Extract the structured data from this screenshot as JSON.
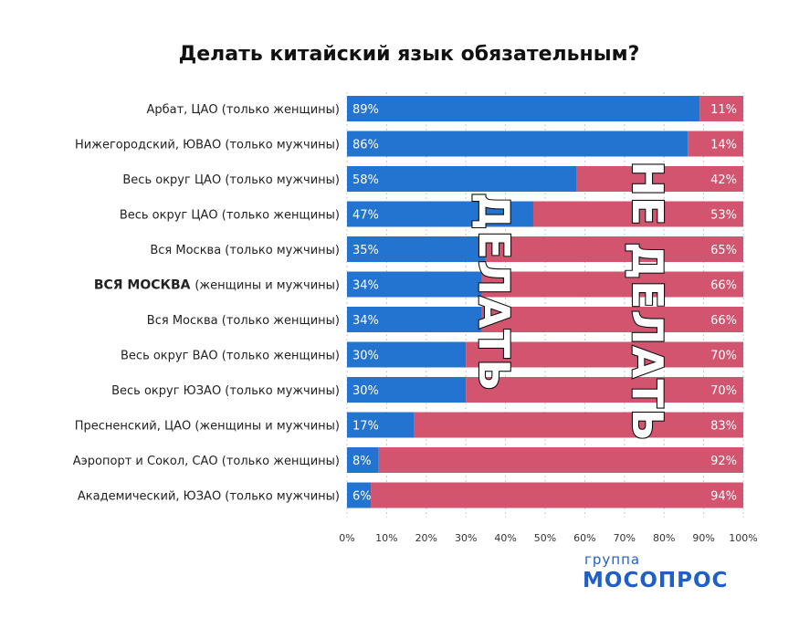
{
  "chart_data": {
    "type": "bar",
    "orientation": "horizontal",
    "stacked": true,
    "title": "Делать китайский язык обязательным?",
    "categories": [
      {
        "label": "Арбат, ЦАО (только женщины)"
      },
      {
        "label": "Нижегородский, ЮВАО (только мужчины)"
      },
      {
        "label": "Весь округ ЦАО (только мужчины)"
      },
      {
        "label": "Весь округ ЦАО (только женщины)"
      },
      {
        "label": "Вся Москва (только мужчины)"
      },
      {
        "label": "(женщины и мужчины)",
        "bold_prefix": "ВСЯ МОСКВА"
      },
      {
        "label": "Вся Москва (только женщины)"
      },
      {
        "label": "Весь округ ВАО (только женщины)"
      },
      {
        "label": "Весь округ ЮЗАО (только мужчины)"
      },
      {
        "label": "Пресненский, ЦАО (женщины и мужчины)"
      },
      {
        "label": "Аэропорт и Сокол, САО (только женщины)"
      },
      {
        "label": "Академический, ЮЗАО (только мужчины)"
      }
    ],
    "series": [
      {
        "key": "do",
        "color": "#2374d1",
        "values": [
          89,
          86,
          58,
          47,
          35,
          34,
          34,
          30,
          30,
          17,
          8,
          6
        ]
      },
      {
        "key": "dont",
        "color": "#d2546f",
        "values": [
          11,
          14,
          42,
          53,
          65,
          66,
          66,
          70,
          70,
          83,
          92,
          94
        ]
      }
    ],
    "value_suffix": "%",
    "xlim": [
      0,
      100
    ],
    "xticks": [
      "0%",
      "10%",
      "20%",
      "30%",
      "40%",
      "50%",
      "60%",
      "70%",
      "80%",
      "90%",
      "100%"
    ],
    "xtick_values": [
      0,
      10,
      20,
      30,
      40,
      50,
      60,
      70,
      80,
      90,
      100
    ],
    "grid": "vertical-dotted",
    "annotations": {
      "do": "ДЕЛАТЬ",
      "dont": "НЕ ДЕЛАТЬ"
    }
  },
  "logo": {
    "line1": "группа",
    "line2": "МОСОПРОС"
  }
}
